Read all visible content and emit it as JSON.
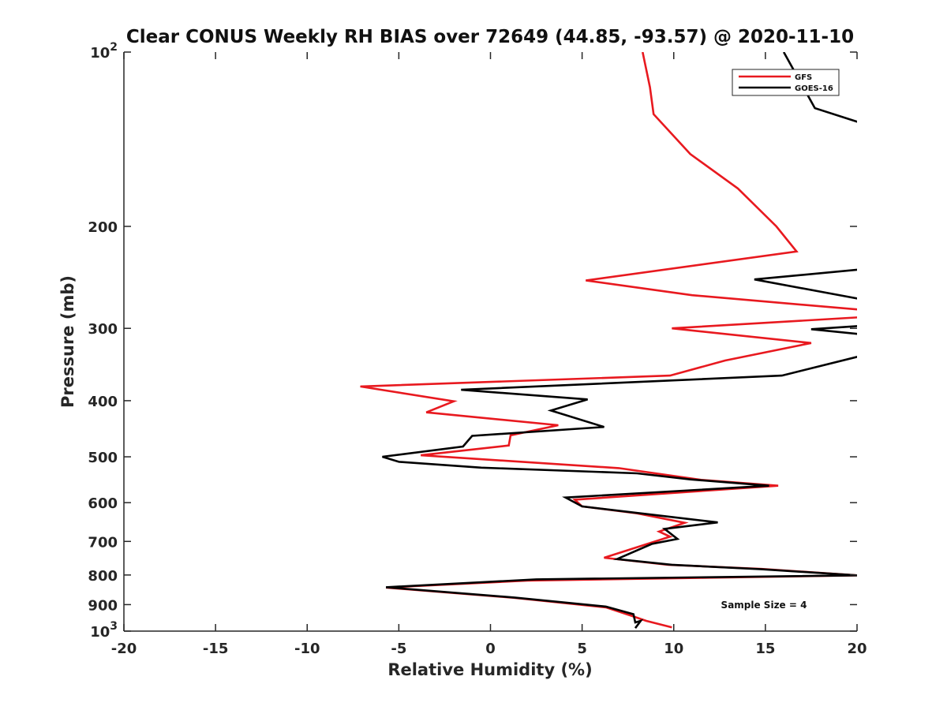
{
  "chart_data": {
    "type": "line",
    "title": "Clear CONUS Weekly RH BIAS over 72649 (44.85, -93.57) @ 2020-11-10",
    "xlabel": "Relative Humidity (%)",
    "ylabel": "Pressure (mb)",
    "xlim": [
      -20,
      20
    ],
    "ylim": [
      100,
      1000
    ],
    "y_scale": "log",
    "y_reversed": true,
    "grid": false,
    "legend_position": "top-right",
    "x_ticks": [
      "-20",
      "-15",
      "-10",
      "-5",
      "0",
      "5",
      "10",
      "15",
      "20"
    ],
    "y_ticks": [
      {
        "value": 100,
        "base": "10",
        "exp": "2"
      },
      {
        "value": 200,
        "base": "200",
        "exp": ""
      },
      {
        "value": 300,
        "base": "300",
        "exp": ""
      },
      {
        "value": 400,
        "base": "400",
        "exp": ""
      },
      {
        "value": 500,
        "base": "500",
        "exp": ""
      },
      {
        "value": 600,
        "base": "600",
        "exp": ""
      },
      {
        "value": 700,
        "base": "700",
        "exp": ""
      },
      {
        "value": 800,
        "base": "800",
        "exp": ""
      },
      {
        "value": 900,
        "base": "900",
        "exp": ""
      },
      {
        "value": 1000,
        "base": "10",
        "exp": "3"
      }
    ],
    "series": [
      {
        "name": "GFS",
        "color": "#e8191f",
        "points": [
          [
            8.3,
            100
          ],
          [
            8.7,
            115
          ],
          [
            8.9,
            128
          ],
          [
            10.9,
            150
          ],
          [
            13.5,
            172
          ],
          [
            15.6,
            200
          ],
          [
            16.7,
            221
          ],
          [
            5.2,
            248
          ],
          [
            11.0,
            263
          ],
          [
            21.0,
            280
          ],
          [
            21.0,
            286
          ],
          [
            9.9,
            300
          ],
          [
            17.5,
            318
          ],
          [
            12.8,
            341
          ],
          [
            9.8,
            362
          ],
          [
            -7.1,
            378
          ],
          [
            -2.0,
            401
          ],
          [
            -3.5,
            419
          ],
          [
            3.7,
            441
          ],
          [
            1.1,
            459
          ],
          [
            1.0,
            478
          ],
          [
            -3.8,
            497
          ],
          [
            7.0,
            523
          ],
          [
            11.5,
            548
          ],
          [
            15.7,
            561
          ],
          [
            4.6,
            593
          ],
          [
            5.0,
            609
          ],
          [
            8.0,
            626
          ],
          [
            10.6,
            650
          ],
          [
            9.2,
            673
          ],
          [
            9.8,
            687
          ],
          [
            6.2,
            747
          ],
          [
            9.7,
            768
          ],
          [
            14.8,
            781
          ],
          [
            20.0,
            801
          ],
          [
            2.0,
            818
          ],
          [
            -5.7,
            841
          ],
          [
            1.3,
            876
          ],
          [
            6.3,
            910
          ],
          [
            7.7,
            941
          ],
          [
            8.5,
            960
          ],
          [
            9.9,
            985
          ]
        ]
      },
      {
        "name": "GOES-16",
        "color": "#000000",
        "points": [
          [
            16.0,
            100
          ],
          [
            17.7,
            125
          ],
          [
            21.0,
            135
          ],
          [
            21.0,
            236
          ],
          [
            14.4,
            247
          ],
          [
            21.0,
            270
          ],
          [
            21.0,
            296
          ],
          [
            17.5,
            301
          ],
          [
            21.0,
            309
          ],
          [
            21.0,
            330
          ],
          [
            15.9,
            362
          ],
          [
            -1.6,
            383
          ],
          [
            5.3,
            398
          ],
          [
            3.3,
            416
          ],
          [
            6.2,
            444
          ],
          [
            -1.0,
            460
          ],
          [
            -1.5,
            480
          ],
          [
            -5.9,
            500
          ],
          [
            -5.0,
            510
          ],
          [
            -0.5,
            522
          ],
          [
            8.0,
            534
          ],
          [
            10.9,
            547
          ],
          [
            15.2,
            561
          ],
          [
            4.1,
            588
          ],
          [
            5.0,
            609
          ],
          [
            8.0,
            625
          ],
          [
            12.4,
            649
          ],
          [
            9.5,
            666
          ],
          [
            10.2,
            693
          ],
          [
            8.8,
            707
          ],
          [
            6.9,
            751
          ],
          [
            9.9,
            768
          ],
          [
            14.8,
            782
          ],
          [
            20.0,
            801
          ],
          [
            2.5,
            814
          ],
          [
            -5.7,
            840
          ],
          [
            1.3,
            875
          ],
          [
            6.3,
            907
          ],
          [
            7.8,
            935
          ],
          [
            7.9,
            966
          ],
          [
            8.2,
            960
          ],
          [
            7.9,
            988
          ]
        ]
      }
    ],
    "annotation": "Sample Size = 4"
  }
}
